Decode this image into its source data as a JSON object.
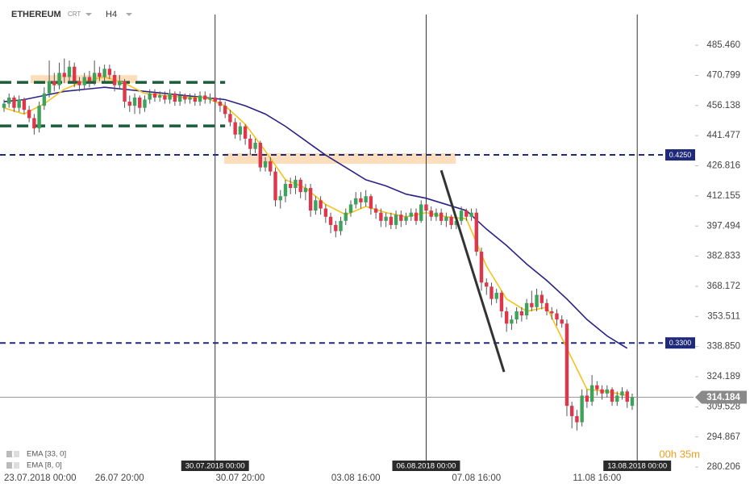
{
  "chart_data": {
    "type": "candlestick",
    "title": "ETHEREUM",
    "instrument_type": "CRT",
    "timeframe": "H4",
    "up_color": "#3da35a",
    "down_color": "#e0364b",
    "open": [
      455,
      457,
      460,
      455,
      459,
      454,
      450,
      445,
      456,
      462,
      468,
      466,
      472,
      470,
      475,
      468,
      466,
      470,
      468,
      472,
      470,
      474,
      471,
      466,
      468,
      458,
      456,
      460,
      455,
      459,
      462,
      460,
      461,
      459,
      462,
      458,
      461,
      459,
      460,
      458,
      461,
      459,
      460,
      458,
      456,
      452,
      448,
      442,
      446,
      440,
      435,
      438,
      426,
      429,
      424,
      410,
      412,
      418,
      416,
      420,
      414,
      416,
      405,
      410,
      406,
      402,
      398,
      395,
      400,
      404,
      408,
      411,
      409,
      412,
      406,
      404,
      400,
      402,
      398,
      403,
      400,
      402,
      404,
      400,
      408,
      405,
      402,
      404,
      400,
      402,
      398,
      400,
      405,
      402,
      404,
      385,
      370,
      368,
      362,
      365,
      356,
      350,
      352,
      356,
      354,
      360,
      358,
      364,
      360,
      356,
      355,
      352,
      350,
      310,
      305,
      302,
      315,
      312,
      320,
      318,
      316,
      318,
      312,
      315,
      317,
      310
    ],
    "high": [
      459,
      462,
      461,
      461,
      460,
      456,
      452,
      458,
      465,
      478,
      472,
      477,
      479,
      478,
      477,
      470,
      472,
      473,
      478,
      475,
      476,
      476,
      473,
      471,
      469,
      461,
      462,
      461,
      461,
      464,
      464,
      463,
      463,
      464,
      463,
      463,
      462,
      462,
      462,
      463,
      463,
      462,
      462,
      460,
      458,
      454,
      450,
      448,
      447,
      442,
      440,
      439,
      431,
      431,
      426,
      415,
      420,
      421,
      422,
      421,
      418,
      418,
      412,
      412,
      408,
      404,
      400,
      402,
      406,
      410,
      414,
      414,
      415,
      413,
      408,
      406,
      404,
      404,
      405,
      405,
      404,
      406,
      406,
      410,
      409,
      407,
      406,
      406,
      404,
      403,
      402,
      407,
      406,
      406,
      406,
      387,
      372,
      370,
      367,
      366,
      358,
      354,
      358,
      358,
      362,
      366,
      367,
      366,
      362,
      358,
      357,
      354,
      352,
      312,
      308,
      318,
      318,
      325,
      322,
      320,
      320,
      319,
      317,
      319,
      318,
      316
    ],
    "low": [
      453,
      455,
      453,
      453,
      452,
      448,
      442,
      443,
      454,
      460,
      463,
      464,
      467,
      468,
      465,
      463,
      464,
      465,
      466,
      468,
      468,
      469,
      463,
      464,
      455,
      453,
      452,
      452,
      453,
      457,
      458,
      458,
      457,
      457,
      456,
      456,
      457,
      457,
      456,
      456,
      457,
      457,
      455,
      453,
      450,
      446,
      440,
      439,
      437,
      432,
      433,
      424,
      424,
      422,
      407,
      406,
      409,
      413,
      413,
      411,
      410,
      402,
      403,
      403,
      399,
      394,
      392,
      393,
      398,
      402,
      406,
      406,
      407,
      403,
      401,
      397,
      397,
      396,
      396,
      397,
      398,
      400,
      398,
      399,
      402,
      400,
      400,
      398,
      397,
      396,
      396,
      398,
      400,
      400,
      383,
      366,
      364,
      359,
      360,
      353,
      346,
      347,
      350,
      351,
      352,
      356,
      356,
      357,
      354,
      352,
      349,
      348,
      305,
      299,
      298,
      300,
      309,
      310,
      315,
      313,
      314,
      310,
      310,
      313,
      309,
      308
    ],
    "close": [
      457,
      460,
      455,
      459,
      454,
      450,
      445,
      456,
      462,
      468,
      466,
      472,
      470,
      475,
      468,
      466,
      470,
      468,
      472,
      470,
      474,
      471,
      466,
      468,
      458,
      456,
      460,
      455,
      459,
      462,
      460,
      461,
      459,
      462,
      458,
      461,
      459,
      460,
      458,
      461,
      459,
      460,
      458,
      456,
      452,
      448,
      442,
      446,
      440,
      435,
      438,
      426,
      429,
      424,
      410,
      412,
      418,
      416,
      420,
      414,
      416,
      405,
      410,
      406,
      402,
      398,
      395,
      400,
      404,
      408,
      411,
      409,
      412,
      406,
      404,
      400,
      402,
      398,
      403,
      400,
      402,
      404,
      400,
      408,
      405,
      402,
      404,
      400,
      402,
      398,
      400,
      405,
      402,
      404,
      385,
      370,
      368,
      362,
      365,
      356,
      350,
      352,
      356,
      354,
      360,
      358,
      364,
      360,
      356,
      355,
      352,
      350,
      310,
      305,
      302,
      315,
      312,
      320,
      318,
      316,
      318,
      312,
      315,
      317,
      312,
      314.184
    ],
    "series": [
      {
        "name": "EMA [33, 0]",
        "color": "#2b2285",
        "x": [
          0,
          4,
          8,
          12,
          16,
          20,
          24,
          28,
          32,
          36,
          40,
          44,
          48,
          52,
          56,
          60,
          64,
          68,
          72,
          76,
          80,
          84,
          88,
          92,
          96,
          100,
          104,
          108,
          112,
          116,
          120,
          124
        ],
        "values": [
          458,
          459,
          461,
          463,
          464,
          465,
          464,
          463,
          462,
          461,
          460,
          459,
          456,
          452,
          446,
          439,
          432,
          426,
          420,
          417,
          413,
          411,
          408,
          405,
          396,
          388,
          379,
          371,
          362,
          352,
          344,
          338
        ]
      },
      {
        "name": "EMA [8, 0]",
        "color": "#f5c21b",
        "x": [
          0,
          4,
          8,
          12,
          16,
          20,
          24,
          28,
          32,
          36,
          40,
          44,
          48,
          52,
          56,
          60,
          64,
          68,
          72,
          76,
          80,
          84,
          88,
          92,
          96,
          100,
          104,
          108,
          112,
          116,
          120,
          124
        ],
        "values": [
          455,
          452,
          457,
          464,
          468,
          470,
          467,
          462,
          461,
          460,
          460,
          456,
          447,
          434,
          420,
          416,
          408,
          403,
          407,
          404,
          402,
          404,
          402,
          401,
          378,
          362,
          356,
          358,
          338,
          318,
          317,
          315
        ]
      }
    ],
    "levels": [
      {
        "value": 432.1,
        "label": "0.4250",
        "color": "#1f2a7a"
      },
      {
        "value": 340.6,
        "label": "0.3300",
        "color": "#1f2a7a"
      }
    ],
    "range_lines": [
      {
        "x": [
          -0.8,
          44
        ],
        "value": 467.4,
        "color": "#1b5e3a"
      },
      {
        "x": [
          -0.8,
          44
        ],
        "value": 446.2,
        "color": "#1b5e3a"
      }
    ],
    "zones": [
      {
        "x": [
          5.3,
          26.5
        ],
        "y": [
          467.0,
          470.9
        ],
        "color": "#fbd7b0"
      },
      {
        "x": [
          43.8,
          89.9
        ],
        "y": [
          427.8,
          432.9
        ],
        "color": "#fbd7b0"
      }
    ],
    "trendline": {
      "x": [
        87,
        99.5
      ],
      "y": [
        424.6,
        326.5
      ],
      "color": "#333333"
    },
    "vlines": [
      {
        "value": 42,
        "label": "30.07.2018 00:00"
      },
      {
        "value": 84,
        "label": "06.08.2018 00:00"
      },
      {
        "value": 126,
        "label": "13.08.2018 00:00"
      }
    ],
    "current_price": 314.184,
    "timer": "00h 35m",
    "xlim": [
      -0.8,
      137.2
    ],
    "ylim": [
      272,
      500.4
    ],
    "xticks": [
      {
        "value": 0,
        "label": "23.07.2018 00:00"
      },
      {
        "value": 23,
        "label": "26.07 20:00"
      },
      {
        "value": 47,
        "label": "30.07 20:00"
      },
      {
        "value": 70,
        "label": "03.08 16:00"
      },
      {
        "value": 94,
        "label": "07.08 16:00"
      },
      {
        "value": 118,
        "label": "11.08 16:00"
      }
    ],
    "yticks": [
      {
        "value": 485.46,
        "label": "485.460"
      },
      470.799,
      456.138,
      441.477,
      426.816,
      412.155,
      397.494,
      382.833,
      368.172,
      353.511,
      {
        "value": 338.85,
        "label": "338.850"
      },
      324.189,
      309.528,
      294.867,
      280.206
    ]
  }
}
